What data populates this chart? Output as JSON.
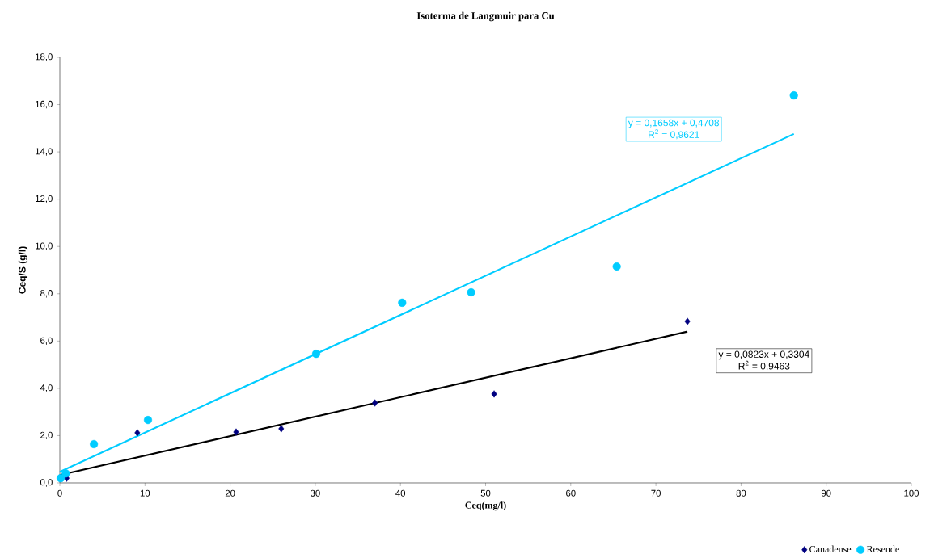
{
  "chart_data": {
    "type": "scatter",
    "title": "Isoterma de Langmuir para Cu",
    "xlabel": "Ceq(mg/l)",
    "ylabel": "Ceq/S (g/l)",
    "xlim": [
      0,
      100
    ],
    "xticks": [
      0,
      10,
      20,
      30,
      40,
      50,
      60,
      70,
      80,
      90,
      100
    ],
    "ylim": [
      0,
      18
    ],
    "yticks": [
      {
        "value": 0,
        "label": "0,0"
      },
      {
        "value": 2,
        "label": "2,0"
      },
      {
        "value": 4,
        "label": "4,0"
      },
      {
        "value": 6,
        "label": "6,0"
      },
      {
        "value": 8,
        "label": "8,0"
      },
      {
        "value": 10,
        "label": "10,0"
      },
      {
        "value": 12,
        "label": "12,0"
      },
      {
        "value": 14,
        "label": "14,0"
      },
      {
        "value": 16,
        "label": "16,0"
      },
      {
        "value": 18,
        "label": "18,0"
      }
    ],
    "grid": false,
    "legend": "bottom right",
    "series": [
      {
        "name": "Canadense",
        "color": "#000080",
        "marker": "diamond",
        "x": [
          0.8,
          9.1,
          20.7,
          26.0,
          37.0,
          51.0,
          73.7
        ],
        "values": [
          0.2,
          2.12,
          2.15,
          2.29,
          3.38,
          3.76,
          6.83
        ]
      },
      {
        "name": "Resende",
        "color": "#00ccff",
        "marker": "circle",
        "x": [
          0.1,
          0.7,
          4.0,
          10.35,
          30.1,
          40.2,
          48.3,
          65.4,
          86.2
        ],
        "values": [
          0.2,
          0.4,
          1.64,
          2.66,
          5.46,
          7.62,
          8.06,
          9.15,
          16.39
        ]
      },
      {
        "type": "line",
        "color": "#00ccff",
        "x": [
          0,
          86.2
        ],
        "values": [
          0.47,
          14.76
        ]
      },
      {
        "type": "line",
        "color": "#000000",
        "x": [
          0,
          73.7
        ],
        "values": [
          0.33,
          6.4
        ]
      }
    ],
    "annotations": [
      "y = 0,1658x + 0,4708",
      "R$^{2}$ = 0,9621",
      "y = 0,0823x + 0,3304",
      "R$^{2}$ = 0,9463"
    ]
  }
}
